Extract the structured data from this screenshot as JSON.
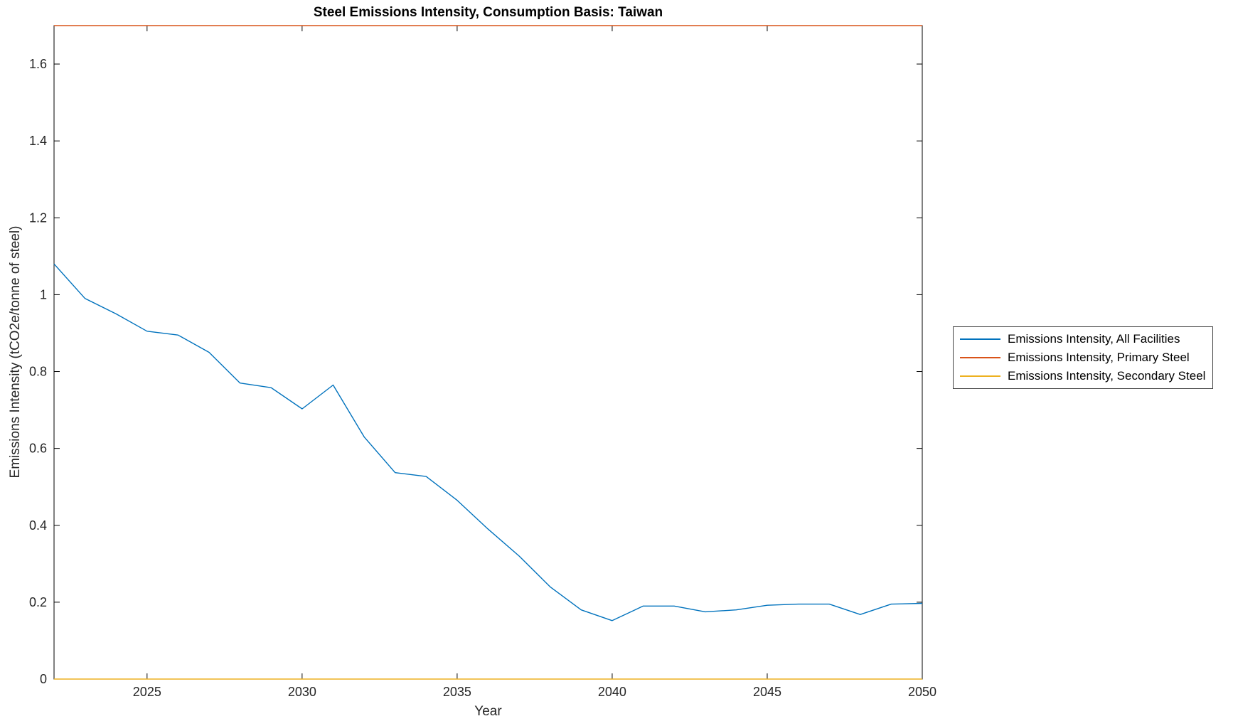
{
  "chart_data": {
    "type": "line",
    "title": "Steel Emissions Intensity, Consumption Basis: Taiwan",
    "xlabel": "Year",
    "ylabel": "Emissions Intensity (tCO2e/tonne of steel)",
    "xlim": [
      2022,
      2050
    ],
    "ylim": [
      0,
      1.7
    ],
    "xticks": [
      2025,
      2030,
      2035,
      2040,
      2045,
      2050
    ],
    "xtick_labels": [
      "2025",
      "2030",
      "2035",
      "2040",
      "2045",
      "2050"
    ],
    "yticks": [
      0,
      0.2,
      0.4,
      0.6,
      0.8,
      1,
      1.2,
      1.4,
      1.6
    ],
    "ytick_labels": [
      "0",
      "0.2",
      "0.4",
      "0.6",
      "0.8",
      "1",
      "1.2",
      "1.4",
      "1.6"
    ],
    "grid": false,
    "legend_position": "right-outside",
    "x": [
      2022,
      2023,
      2024,
      2025,
      2026,
      2027,
      2028,
      2029,
      2030,
      2031,
      2032,
      2033,
      2034,
      2035,
      2036,
      2037,
      2038,
      2039,
      2040,
      2041,
      2042,
      2043,
      2044,
      2045,
      2046,
      2047,
      2048,
      2049,
      2050
    ],
    "series": [
      {
        "name": "Emissions Intensity, All Facilities",
        "color": "#0072BD",
        "values": [
          1.08,
          0.99,
          0.95,
          0.905,
          0.895,
          0.85,
          0.77,
          0.758,
          0.703,
          0.765,
          0.63,
          0.537,
          0.527,
          0.465,
          0.39,
          0.32,
          0.24,
          0.18,
          0.152,
          0.19,
          0.19,
          0.175,
          0.18,
          0.192,
          0.195,
          0.195,
          0.168,
          0.195,
          0.197
        ]
      },
      {
        "name": "Emissions Intensity, Primary Steel",
        "color": "#D95319",
        "values": 1.7
      },
      {
        "name": "Emissions Intensity, Secondary Steel",
        "color": "#EDB120",
        "values": 0
      }
    ]
  }
}
